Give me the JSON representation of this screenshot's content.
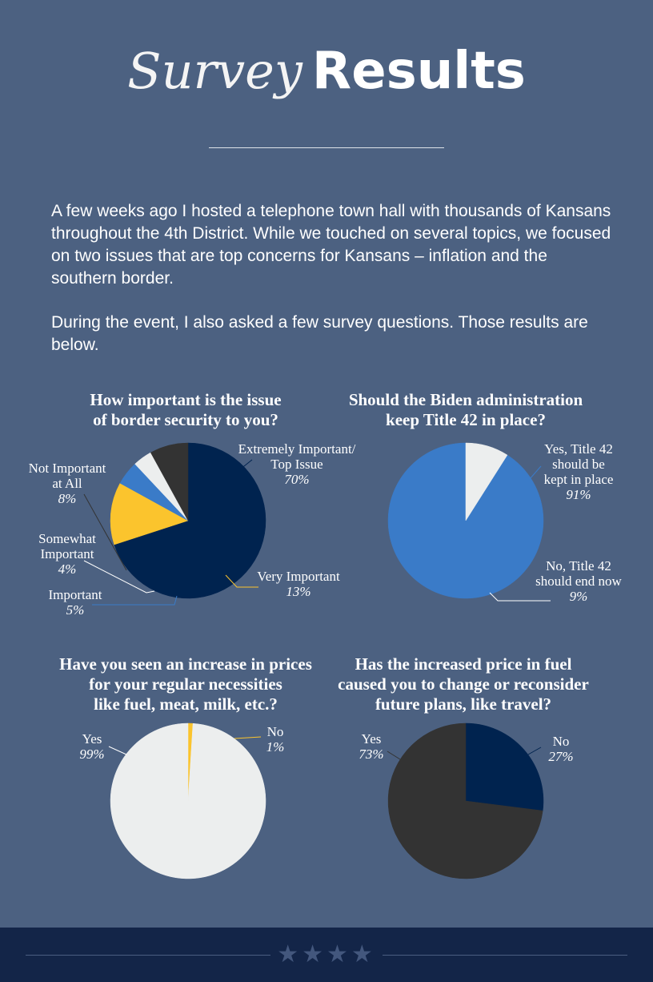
{
  "header": {
    "title_italic": "Survey",
    "title_bold": "Results"
  },
  "intro": {
    "paragraph1": "A few weeks ago I hosted a telephone town hall with thousands of Kansans throughout the 4th District. While we touched on several topics, we focused on two issues that are top concerns for Kansans – inflation and the southern border.",
    "paragraph2": "During the event, I also asked a few survey questions. Those results are below."
  },
  "colors": {
    "background": "#4c6181",
    "navy": "#00234f",
    "charcoal": "#333333",
    "light": "#eceeee",
    "blue": "#3a7bc8",
    "yellow": "#fbc42d",
    "footer": "#132548"
  },
  "chart_data": [
    {
      "type": "pie",
      "title": [
        "How important is the issue",
        "of border security to you?"
      ],
      "slices": [
        {
          "label": [
            "Extremely Important/",
            "Top Issue"
          ],
          "value": 70,
          "pct_label": "70%",
          "color": "#00234f"
        },
        {
          "label": [
            "Very Important"
          ],
          "value": 13,
          "pct_label": "13%",
          "color": "#fbc42d"
        },
        {
          "label": [
            "Important"
          ],
          "value": 5,
          "pct_label": "5%",
          "color": "#3a7bc8"
        },
        {
          "label": [
            "Somewhat",
            "Important"
          ],
          "value": 4,
          "pct_label": "4%",
          "color": "#eceeee"
        },
        {
          "label": [
            "Not Important",
            "at All"
          ],
          "value": 8,
          "pct_label": "8%",
          "color": "#333333"
        }
      ]
    },
    {
      "type": "pie",
      "title": [
        "Should the Biden administration",
        "keep Title 42 in place?"
      ],
      "slices": [
        {
          "label": [
            "Yes, Title 42",
            "should be",
            "kept in place"
          ],
          "value": 91,
          "pct_label": "91%",
          "color": "#3a7bc8"
        },
        {
          "label": [
            "No, Title 42",
            "should end now"
          ],
          "value": 9,
          "pct_label": "9%",
          "color": "#eceeee"
        }
      ]
    },
    {
      "type": "pie",
      "title": [
        "Have you seen an increase in prices",
        "for your regular necessities",
        "like fuel, meat, milk, etc.?"
      ],
      "slices": [
        {
          "label": [
            "No"
          ],
          "value": 1,
          "pct_label": "1%",
          "color": "#fbc42d"
        },
        {
          "label": [
            "Yes"
          ],
          "value": 99,
          "pct_label": "99%",
          "color": "#eceeee"
        }
      ]
    },
    {
      "type": "pie",
      "title": [
        "Has the increased price in fuel",
        "caused you to change or reconsider",
        "future plans, like travel?"
      ],
      "slices": [
        {
          "label": [
            "No"
          ],
          "value": 27,
          "pct_label": "27%",
          "color": "#00234f"
        },
        {
          "label": [
            "Yes"
          ],
          "value": 73,
          "pct_label": "73%",
          "color": "#333333"
        }
      ]
    }
  ],
  "footer": {
    "stars": "★★★★"
  }
}
